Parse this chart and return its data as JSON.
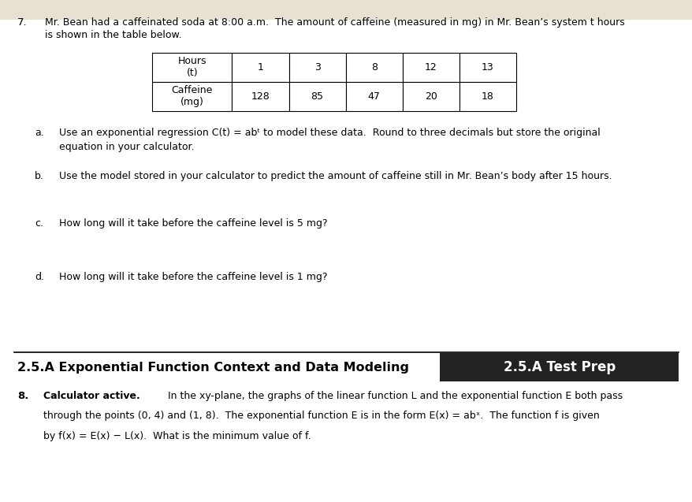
{
  "bg_color": "#e8e0d0",
  "page_bg": "#ffffff",
  "problem_number": "7.",
  "intro_line1": "Mr. Bean had a caffeinated soda at 8:00 a.m.  The amount of caffeine (measured in mg) in Mr. Bean’s system t hours",
  "intro_line2": "is shown in the table below.",
  "table_headers": [
    "Hours\n(t)",
    "1",
    "3",
    "8",
    "12",
    "13"
  ],
  "table_row1_label": "Caffeine\n(mg)",
  "table_row1_values": [
    "128",
    "85",
    "47",
    "20",
    "18"
  ],
  "part_a_label": "a.",
  "part_a_text": "Use an exponential regression C(t) = abᵗ to model these data.  Round to three decimals but store the original\nequation in your calculator.",
  "part_b_label": "b.",
  "part_b_text": "Use the model stored in your calculator to predict the amount of caffeine still in Mr. Bean’s body after 15 hours.",
  "part_c_label": "c.",
  "part_c_text": "How long will it take before the caffeine level is 5 mg?",
  "part_d_label": "d.",
  "part_d_text": "How long will it take before the caffeine level is 1 mg?",
  "footer_left": "2.5.A Exponential Function Context and Data Modeling",
  "footer_right": "2.5.A Test Prep",
  "footer_bg": "#222222",
  "footer_text_color": "#ffffff",
  "problem8_number": "8.",
  "problem8_bold": "Calculator active.",
  "problem8_line1": " In the xy-plane, the graphs of the linear function L and the exponential function E both pass",
  "problem8_line2": "through the points (0, 4) and (1, 8).  The exponential function E is in the form E(x) = abˣ.  The function f is given",
  "problem8_line3": "by f(x) = E(x) − L(x).  What is the minimum value of f."
}
